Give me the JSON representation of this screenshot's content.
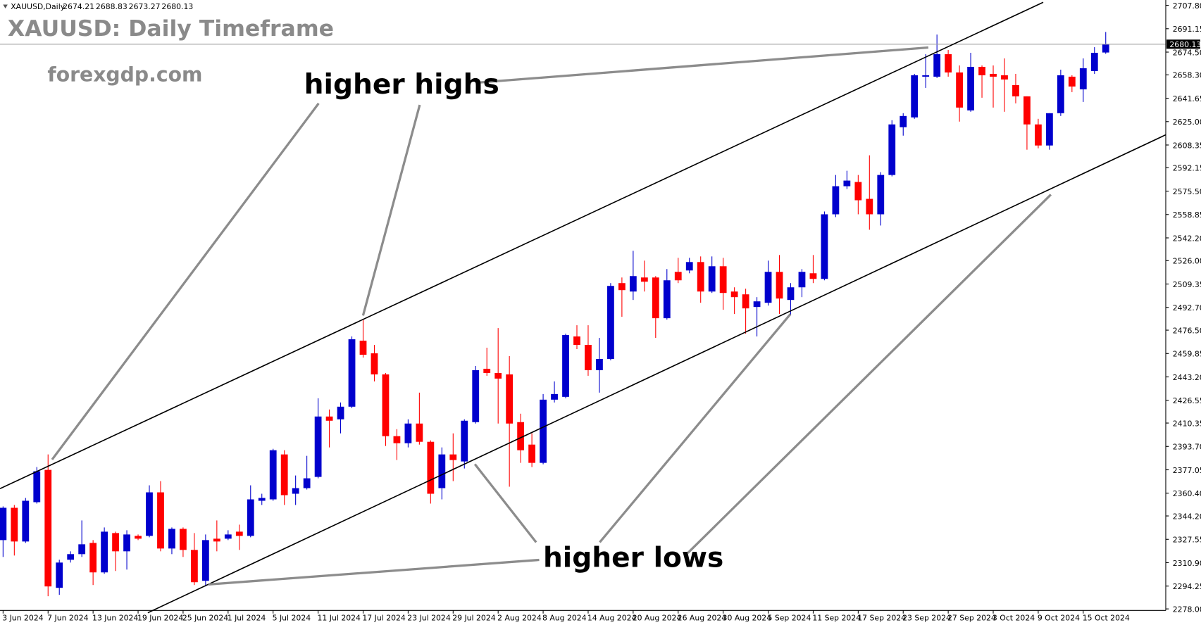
{
  "chart_data": {
    "type": "candlestick",
    "symbol": "XAUUSD,Daily",
    "title": "XAUUSD: Daily Timeframe",
    "watermark": "forexgdp.com",
    "annotations": [
      "higher highs",
      "higher lows"
    ],
    "up_color": "#0000cd",
    "down_color": "#ff0000",
    "categories": [
      "3 Jun 2024",
      null,
      null,
      null,
      "7 Jun 2024",
      null,
      null,
      null,
      "13 Jun 2024",
      null,
      null,
      null,
      "19 Jun 2024",
      null,
      null,
      null,
      "25 Jun 2024",
      null,
      null,
      null,
      "1 Jul 2024",
      null,
      null,
      null,
      "5 Jul 2024",
      null,
      null,
      null,
      "11 Jul 2024",
      null,
      null,
      null,
      "17 Jul 2024",
      null,
      null,
      null,
      "23 Jul 2024",
      null,
      null,
      null,
      "29 Jul 2024",
      null,
      null,
      null,
      "2 Aug 2024",
      null,
      null,
      null,
      "8 Aug 2024",
      null,
      null,
      null,
      "14 Aug 2024",
      null,
      null,
      null,
      "20 Aug 2024",
      null,
      null,
      null,
      "26 Aug 2024",
      null,
      null,
      null,
      "30 Aug 2024",
      null,
      null,
      null,
      "5 Sep 2024",
      null,
      null,
      null,
      "11 Sep 2024",
      null,
      null,
      null,
      "17 Sep 2024",
      null,
      null,
      null,
      "23 Sep 2024",
      null,
      null,
      null,
      "27 Sep 2024",
      null,
      null,
      null,
      "3 Oct 2024",
      null,
      null,
      null,
      "9 Oct 2024",
      null,
      null,
      null,
      "15 Oct 2024",
      null,
      null
    ],
    "open": [
      2327,
      2350,
      2326,
      2354,
      2377,
      2293,
      2313,
      2317,
      2325,
      2304,
      2332,
      2319,
      2330,
      2330,
      2361,
      2321,
      2335,
      2320,
      2298,
      2328,
      2328,
      2333,
      2330,
      2355,
      2356,
      2388,
      2360,
      2364,
      2372,
      2415,
      2413,
      2422,
      2469,
      2460,
      2445,
      2401,
      2396,
      2410,
      2397,
      2364,
      2388,
      2383,
      2411,
      2449,
      2446,
      2445,
      2411,
      2395,
      2382,
      2427,
      2429,
      2472,
      2466,
      2448,
      2456,
      2510,
      2504,
      2514,
      2514,
      2485,
      2518,
      2519,
      2525,
      2504,
      2522,
      2504,
      2502,
      2493,
      2496,
      2518,
      2498,
      2507,
      2517,
      2513,
      2559,
      2579,
      2582,
      2570,
      2559,
      2587,
      2621,
      2628,
      2657,
      2657,
      2673,
      2660,
      2633,
      2664,
      2659,
      2658,
      2651,
      2643,
      2623,
      2608,
      2631,
      2657,
      2648,
      2661,
      2674.21
    ],
    "high": [
      2351,
      2352,
      2357,
      2379,
      2388,
      2313,
      2319,
      2341,
      2327,
      2336,
      2333,
      2334,
      2331,
      2366,
      2369,
      2336,
      2336,
      2332,
      2331,
      2341,
      2334,
      2338,
      2366,
      2360,
      2392,
      2391,
      2373,
      2387,
      2428,
      2420,
      2425,
      2472,
      2484,
      2466,
      2446,
      2406,
      2413,
      2432,
      2398,
      2393,
      2403,
      2413,
      2451,
      2464,
      2478,
      2458,
      2417,
      2403,
      2431,
      2440,
      2474,
      2480,
      2480,
      2471,
      2510,
      2514,
      2533,
      2526,
      2515,
      2520,
      2528,
      2528,
      2529,
      2529,
      2528,
      2507,
      2506,
      2500,
      2526,
      2530,
      2510,
      2520,
      2530,
      2561,
      2587,
      2590,
      2587,
      2601,
      2589,
      2626,
      2631,
      2659,
      2673,
      2687,
      2676,
      2665,
      2674,
      2665,
      2665,
      2670,
      2659,
      2643,
      2627,
      2631,
      2662,
      2658,
      2670,
      2678,
      2688.83
    ],
    "low": [
      2315,
      2316,
      2325,
      2353,
      2287,
      2288,
      2311,
      2315,
      2295,
      2303,
      2305,
      2306,
      2327,
      2329,
      2319,
      2317,
      2315,
      2295,
      2294,
      2319,
      2327,
      2320,
      2329,
      2352,
      2355,
      2352,
      2352,
      2363,
      2371,
      2393,
      2403,
      2421,
      2457,
      2440,
      2394,
      2384,
      2393,
      2395,
      2353,
      2356,
      2369,
      2378,
      2410,
      2444,
      2410,
      2365,
      2382,
      2379,
      2381,
      2425,
      2428,
      2463,
      2444,
      2432,
      2455,
      2486,
      2498,
      2504,
      2471,
      2484,
      2510,
      2517,
      2496,
      2503,
      2491,
      2488,
      2474,
      2472,
      2494,
      2488,
      2487,
      2500,
      2510,
      2512,
      2557,
      2577,
      2559,
      2548,
      2551,
      2586,
      2615,
      2627,
      2649,
      2656,
      2657,
      2625,
      2632,
      2642,
      2635,
      2632,
      2638,
      2605,
      2606,
      2605,
      2629,
      2646,
      2639,
      2659,
      2673.27
    ],
    "close": [
      2350,
      2326,
      2355,
      2376,
      2294,
      2311,
      2317,
      2324,
      2304,
      2333,
      2319,
      2331,
      2328,
      2361,
      2321,
      2335,
      2320,
      2297,
      2327,
      2326,
      2331,
      2330,
      2356,
      2357,
      2391,
      2359,
      2364,
      2371,
      2415,
      2412,
      2422,
      2470,
      2459,
      2445,
      2401,
      2396,
      2410,
      2397,
      2360,
      2388,
      2384,
      2412,
      2448,
      2446,
      2442,
      2410,
      2391,
      2382,
      2427,
      2431,
      2473,
      2466,
      2448,
      2456,
      2508,
      2505,
      2515,
      2511,
      2485,
      2512,
      2512,
      2525,
      2504,
      2522,
      2503,
      2500,
      2492,
      2497,
      2518,
      2499,
      2507,
      2518,
      2513,
      2559,
      2579,
      2583,
      2569,
      2559,
      2587,
      2623,
      2629,
      2658,
      2658,
      2673,
      2660,
      2635,
      2664,
      2658,
      2657,
      2655,
      2643,
      2623,
      2608,
      2631,
      2658,
      2650,
      2663,
      2674,
      2680.13
    ],
    "ylim": [
      2276.9,
      2711.6
    ],
    "yticks": [
      {
        "value": 2707.8,
        "label": "2707.80"
      },
      2691.15,
      {
        "value": 2674.5,
        "label": "2674.50"
      },
      {
        "value": 2658.3,
        "label": "2658.30"
      },
      2641.65,
      {
        "value": 2625,
        "label": "2625.00"
      },
      2608.35,
      2592.15,
      {
        "value": 2575.5,
        "label": "2575.50"
      },
      2558.85,
      {
        "value": 2542.2,
        "label": "2542.20"
      },
      {
        "value": 2526,
        "label": "2526.00"
      },
      2509.35,
      {
        "value": 2492.7,
        "label": "2492.70"
      },
      {
        "value": 2476.5,
        "label": "2476.50"
      },
      2459.85,
      {
        "value": 2443.2,
        "label": "2443.20"
      },
      2426.55,
      2410.35,
      {
        "value": 2393.7,
        "label": "2393.70"
      },
      2377.05,
      {
        "value": 2360.4,
        "label": "2360.40"
      },
      {
        "value": 2344.2,
        "label": "2344.20"
      },
      2327.55,
      {
        "value": 2310.9,
        "label": "2310.90"
      },
      2294.25,
      {
        "value": 2278,
        "label": "2278.00"
      }
    ],
    "last_price_line": true
  }
}
